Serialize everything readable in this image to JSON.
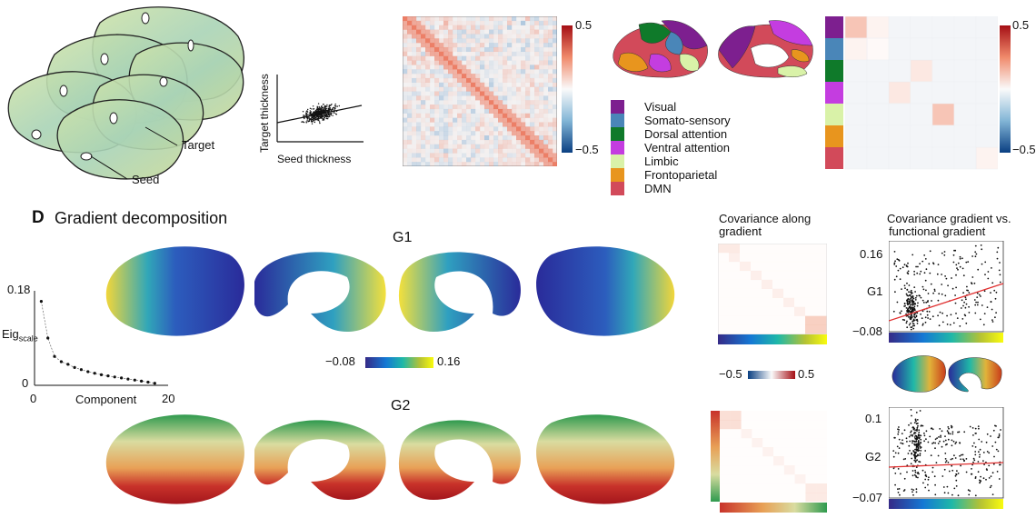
{
  "panel_top": {
    "target_label": "Target",
    "seed_label": "Seed",
    "scatter": {
      "xlabel": "Seed thickness",
      "ylabel": "Target thickness"
    },
    "matrix_colorbar": {
      "max": "0.5",
      "min": "−0.5"
    },
    "network_colorbar": {
      "max": "0.5",
      "min": "−0.5"
    },
    "networks": [
      {
        "name": "Visual",
        "color": "#7d1f8f"
      },
      {
        "name": "Somato-sensory",
        "color": "#4a86b8"
      },
      {
        "name": "Dorsal attention",
        "color": "#0f7a2a"
      },
      {
        "name": "Ventral attention",
        "color": "#c43de0"
      },
      {
        "name": "Limbic",
        "color": "#d9f2a8"
      },
      {
        "name": "Frontoparietal",
        "color": "#e8951e"
      },
      {
        "name": "DMN",
        "color": "#d24a5a"
      }
    ]
  },
  "panel_d": {
    "letter": "D",
    "title": "Gradient decomposition",
    "g1_label": "G1",
    "g2_label": "G2",
    "g1_colorbar": {
      "min": "−0.08",
      "max": "0.16"
    },
    "cov_colorbar": {
      "min": "−0.5",
      "max": "0.5"
    },
    "cov_title_line1": "Covariance along",
    "cov_title_line2": "gradient",
    "cg_title_line1": "Covariance gradient vs.",
    "cg_title_line2": "functional gradient",
    "g1_scatter": {
      "ylabel": "G1",
      "ymax": "0.16",
      "ymin": "−0.08"
    },
    "g2_scatter": {
      "ylabel": "G2",
      "ymax": "0.1",
      "ymin": "−0.07"
    }
  },
  "chart_data": {
    "type": "scatter",
    "title": "",
    "xlabel": "Component",
    "ylabel": "Eig",
    "ylabel_sub": "scale",
    "x_ticks": [
      "0",
      "20"
    ],
    "y_ticks": [
      "0",
      "0.18"
    ],
    "xlim": [
      0,
      20
    ],
    "ylim": [
      0,
      0.18
    ],
    "x": [
      1,
      2,
      3,
      4,
      5,
      6,
      7,
      8,
      9,
      10,
      11,
      12,
      13,
      14,
      15,
      16,
      17,
      18
    ],
    "y": [
      0.16,
      0.09,
      0.055,
      0.045,
      0.04,
      0.034,
      0.03,
      0.026,
      0.023,
      0.02,
      0.018,
      0.016,
      0.014,
      0.012,
      0.01,
      0.008,
      0.006,
      0.004
    ]
  }
}
